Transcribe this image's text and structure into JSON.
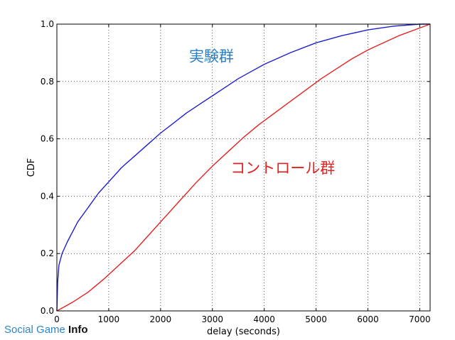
{
  "chart_data": {
    "type": "line",
    "xlabel": "delay (seconds)",
    "ylabel": "CDF",
    "xlim": [
      0,
      7200
    ],
    "ylim": [
      0,
      1
    ],
    "x_ticks": [
      0,
      1000,
      2000,
      3000,
      4000,
      5000,
      6000,
      7000
    ],
    "y_ticks": [
      0.0,
      0.2,
      0.4,
      0.6,
      0.8,
      1.0
    ],
    "grid": true,
    "series": [
      {
        "name": "実験群",
        "color": "#1f1fd0",
        "label_color": "#2a7fc4",
        "label_anchor": [
          2550,
          0.87
        ],
        "points": [
          [
            0,
            0
          ],
          [
            15,
            0.1
          ],
          [
            40,
            0.16
          ],
          [
            100,
            0.2
          ],
          [
            200,
            0.24
          ],
          [
            400,
            0.31
          ],
          [
            600,
            0.36
          ],
          [
            800,
            0.41
          ],
          [
            1000,
            0.45
          ],
          [
            1250,
            0.5
          ],
          [
            1500,
            0.54
          ],
          [
            1750,
            0.58
          ],
          [
            2000,
            0.62
          ],
          [
            2250,
            0.655
          ],
          [
            2500,
            0.69
          ],
          [
            2750,
            0.72
          ],
          [
            3000,
            0.75
          ],
          [
            3250,
            0.78
          ],
          [
            3500,
            0.81
          ],
          [
            3750,
            0.835
          ],
          [
            4000,
            0.86
          ],
          [
            4500,
            0.9
          ],
          [
            5000,
            0.935
          ],
          [
            5500,
            0.96
          ],
          [
            6000,
            0.98
          ],
          [
            6500,
            0.993
          ],
          [
            7000,
            1.0
          ],
          [
            7200,
            1.0
          ]
        ]
      },
      {
        "name": "コントロール群",
        "color": "#e52222",
        "label_color": "#e52222",
        "label_anchor": [
          3350,
          0.48
        ],
        "points": [
          [
            0,
            0
          ],
          [
            100,
            0.01
          ],
          [
            300,
            0.03
          ],
          [
            600,
            0.065
          ],
          [
            900,
            0.11
          ],
          [
            1200,
            0.16
          ],
          [
            1500,
            0.21
          ],
          [
            1800,
            0.27
          ],
          [
            2100,
            0.33
          ],
          [
            2400,
            0.39
          ],
          [
            2700,
            0.45
          ],
          [
            3000,
            0.505
          ],
          [
            3300,
            0.555
          ],
          [
            3600,
            0.605
          ],
          [
            3900,
            0.65
          ],
          [
            4200,
            0.69
          ],
          [
            4500,
            0.73
          ],
          [
            4800,
            0.77
          ],
          [
            5100,
            0.81
          ],
          [
            5400,
            0.845
          ],
          [
            5700,
            0.88
          ],
          [
            6000,
            0.91
          ],
          [
            6300,
            0.935
          ],
          [
            6600,
            0.96
          ],
          [
            6900,
            0.98
          ],
          [
            7200,
            1.0
          ]
        ]
      }
    ]
  },
  "watermark": {
    "part1": "Social Game ",
    "part2": "Info"
  }
}
